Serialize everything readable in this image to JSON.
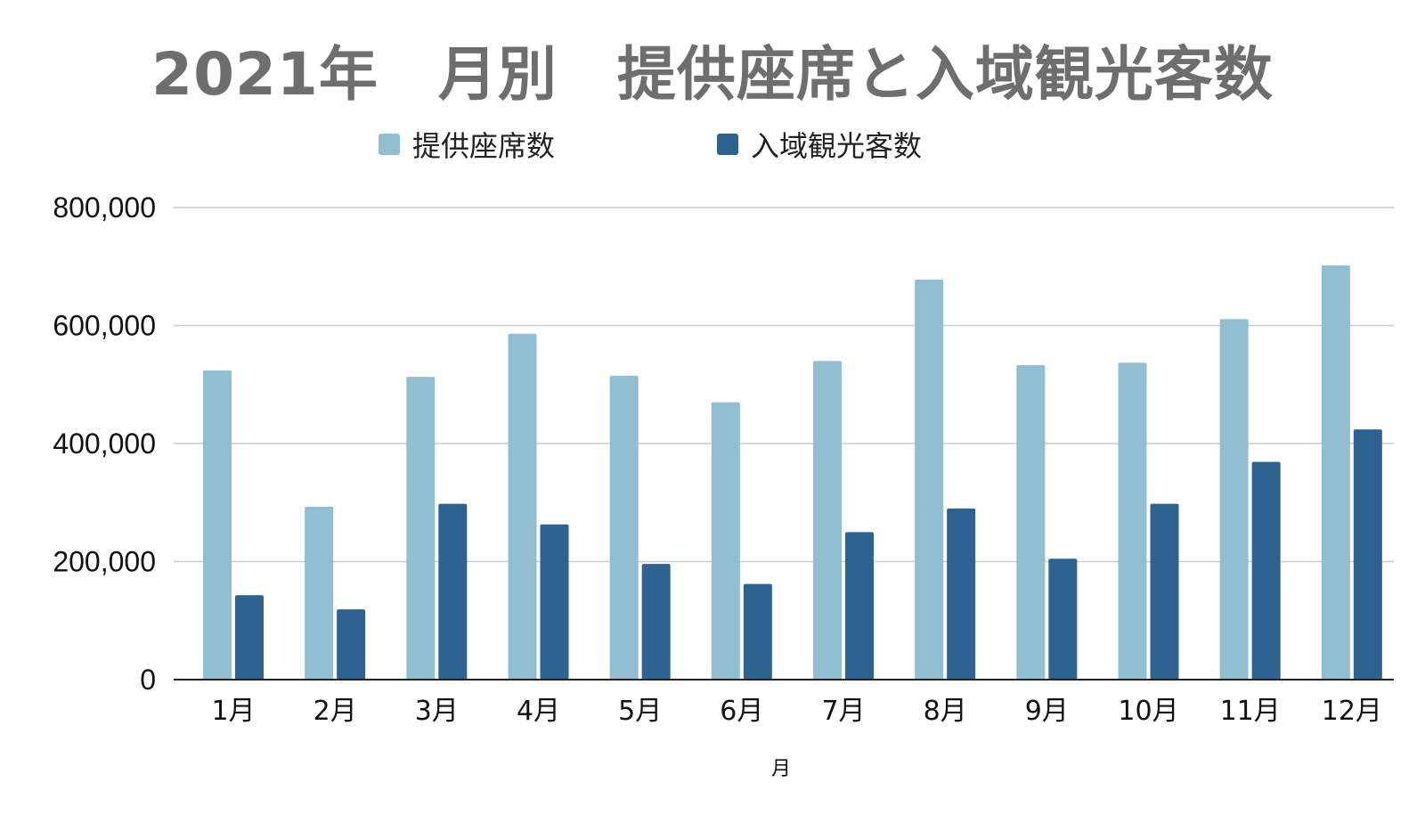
{
  "chart_data": {
    "type": "bar",
    "title": "2021年　月別　提供座席と入域観光客数",
    "xlabel": "月",
    "ylabel": "",
    "categories": [
      "1月",
      "2月",
      "3月",
      "4月",
      "5月",
      "6月",
      "7月",
      "8月",
      "9月",
      "10月",
      "11月",
      "12月"
    ],
    "series": [
      {
        "name": "提供座席数",
        "color": "#91bed0",
        "values": [
          524000,
          293000,
          513000,
          586000,
          515000,
          470000,
          540000,
          678000,
          533000,
          537000,
          611000,
          702000
        ]
      },
      {
        "name": "入域観光客数",
        "color": "#2c6390",
        "values": [
          143000,
          119000,
          298000,
          263000,
          196000,
          162000,
          250000,
          290000,
          205000,
          298000,
          369000,
          424000
        ]
      }
    ],
    "ylim": [
      0,
      800000
    ],
    "yticks": [
      "0",
      "200,000",
      "400,000",
      "600,000",
      "800,000"
    ],
    "ytick_values": [
      0,
      200000,
      400000,
      600000,
      800000
    ],
    "grid": true,
    "legend_position": "top"
  }
}
